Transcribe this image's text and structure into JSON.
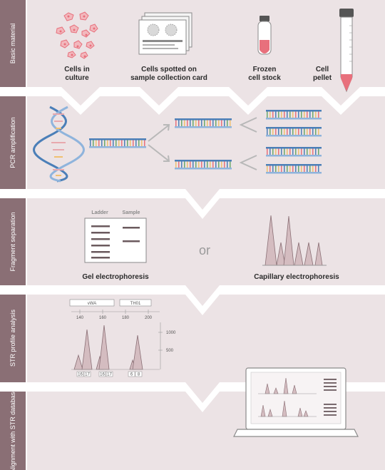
{
  "stages": [
    {
      "id": "basic",
      "label": "Basic material"
    },
    {
      "id": "pcr",
      "label": "PCR amplification"
    },
    {
      "id": "fragment",
      "label": "Fragment separation"
    },
    {
      "id": "str",
      "label": "STR profile analysis"
    },
    {
      "id": "align",
      "label": "Alignment with STR database"
    }
  ],
  "basic_items": [
    {
      "line1": "Cells in",
      "line2": "culture"
    },
    {
      "line1": "Cells spotted on",
      "line2": "sample collection card"
    },
    {
      "line1": "Frozen",
      "line2": "cell stock"
    },
    {
      "line1": "Cell",
      "line2": "pellet"
    }
  ],
  "fragment": {
    "gel_label": "Gel electrophoresis",
    "cap_label": "Capillary electrophoresis",
    "or_text": "or",
    "ladder_label": "Ladder",
    "sample_label": "Sample"
  },
  "str_profile": {
    "marker1": "vWA",
    "marker2": "TH01",
    "axis_ticks": [
      "140",
      "160",
      "180",
      "200"
    ],
    "y_ticks": [
      "1000",
      "500"
    ],
    "allele_boxes": [
      "16",
      "17",
      "9.3",
      "6",
      "8"
    ]
  },
  "colors": {
    "band_bg": "#ece3e5",
    "side_bar": "#8a6f75",
    "pink": "#e8707c",
    "dna_blue": "#4b7fb8",
    "grey": "#9a9a9a"
  }
}
